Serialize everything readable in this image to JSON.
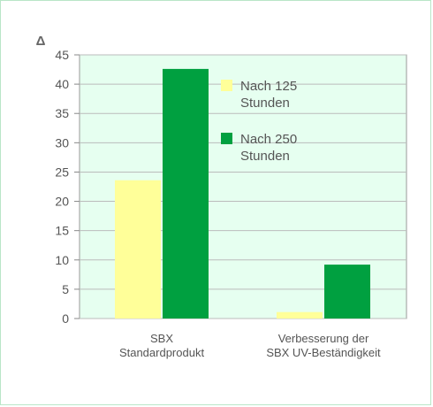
{
  "chart_data": {
    "type": "bar",
    "ylabel": "Δ",
    "ylim": [
      0,
      45
    ],
    "yticks": [
      0,
      5,
      10,
      15,
      20,
      25,
      30,
      35,
      40,
      45
    ],
    "grid": true,
    "legend_position": "top-right",
    "categories": [
      [
        "SBX",
        "Standardprodukt"
      ],
      [
        "Verbesserung der",
        "SBX UV-Beständigkeit"
      ]
    ],
    "series": [
      {
        "name": [
          "Nach 125",
          "Stunden"
        ],
        "values": [
          23.6,
          1.1
        ],
        "color": "#ffff99"
      },
      {
        "name": [
          "Nach 250",
          "Stunden"
        ],
        "values": [
          42.6,
          9.2
        ],
        "color": "#00a040"
      }
    ],
    "colors": {
      "plot_background": "#e6fff0",
      "grid": "#bbbbbb",
      "axis": "#888888",
      "frame_border": "#b9e6c8"
    }
  }
}
